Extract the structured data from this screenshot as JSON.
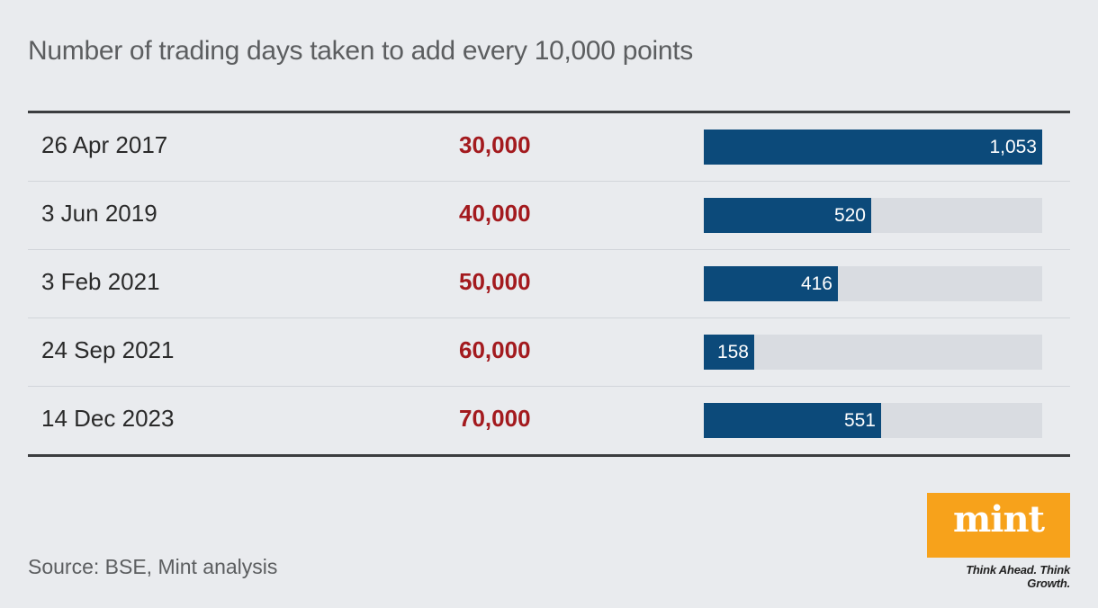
{
  "chart_data": {
    "type": "bar",
    "title": "Number of trading days taken to add every 10,000 points",
    "categories": [
      "26 Apr 2017",
      "3 Jun 2019",
      "3 Feb 2021",
      "24 Sep 2021",
      "14 Dec 2023"
    ],
    "milestones": [
      "30,000",
      "40,000",
      "50,000",
      "60,000",
      "70,000"
    ],
    "values": [
      1053,
      520,
      416,
      158,
      551
    ],
    "value_labels": [
      "1,053",
      "520",
      "416",
      "158",
      "551"
    ],
    "xlim": [
      0,
      1053
    ],
    "colors": {
      "bar": "#0c4a7a",
      "track": "#d9dce1",
      "milestone": "#a31a1e"
    }
  },
  "footer": {
    "source": "Source: BSE, Mint analysis",
    "logo_text": "mint",
    "tagline": "Think Ahead. Think Growth."
  }
}
